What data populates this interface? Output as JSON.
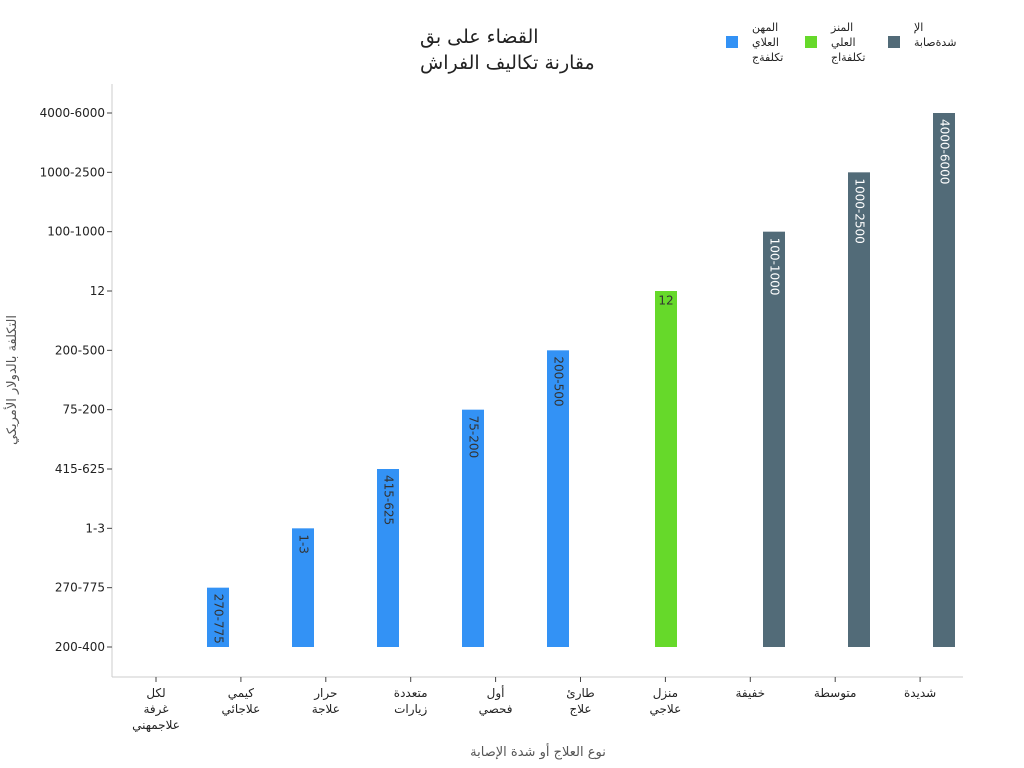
{
  "chart_data": {
    "type": "bar",
    "title_lines": [
      "القضاء على بق",
      "مقارنة تكاليف الفراش"
    ],
    "xlabel": "نوع العلاج أو شدة الإصابة",
    "ylabel": "التكلفة بالدولار الأمريكي",
    "y_ticks": [
      "200-400",
      "270-775",
      "1-3",
      "415-625",
      "75-200",
      "200-500",
      "12",
      "100-1000",
      "1000-2500",
      "4000-6000"
    ],
    "categories": [
      [
        "لكل",
        "غرفة",
        "علاجمهني"
      ],
      [
        "كيمي",
        "علاجائي"
      ],
      [
        "حرار",
        "علاجة"
      ],
      [
        "متعددة",
        "زيارات"
      ],
      [
        "أول",
        "فحصي"
      ],
      [
        "طارئ",
        "علاج"
      ],
      [
        "منزل",
        "علاجي"
      ],
      [
        "خفيفة"
      ],
      [
        "متوسطة"
      ],
      [
        "شديدة"
      ]
    ],
    "series": [
      {
        "legend_lines": [
          "المهن",
          "العلاي",
          "تكلفةج"
        ],
        "color": "#3392f5",
        "values": [
          null,
          "270-775",
          "1-3",
          "415-625",
          "75-200",
          "200-500",
          null,
          null,
          null,
          null
        ]
      },
      {
        "legend_lines": [
          "المنز",
          "العلي",
          "تكلفةاج"
        ],
        "color": "#66d92a",
        "values": [
          null,
          null,
          null,
          null,
          null,
          null,
          "12",
          null,
          null,
          null
        ]
      },
      {
        "legend_lines": [
          "الإ",
          "شدةصابة"
        ],
        "color": "#526b78",
        "values": [
          null,
          null,
          null,
          null,
          null,
          null,
          null,
          "100-1000",
          "1000-2500",
          "4000-6000"
        ]
      }
    ],
    "legend_position": "top-right",
    "grid": false
  }
}
